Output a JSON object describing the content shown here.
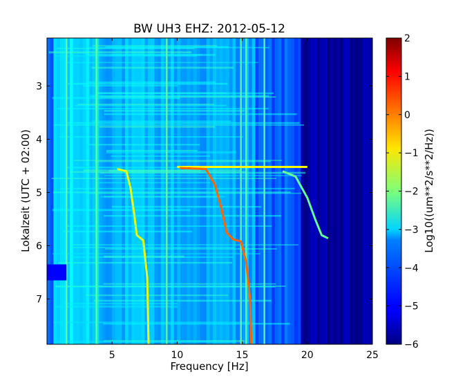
{
  "chart_data": {
    "type": "heatmap",
    "title": "BW UH3 EHZ: 2012-05-12",
    "xlabel": "Frequency [Hz]",
    "ylabel": "Lokalzeit (UTC + 02:00)",
    "xlim": [
      0,
      25
    ],
    "ylim": [
      7.85,
      2.1
    ],
    "x_ticks": [
      5,
      10,
      15,
      20,
      25
    ],
    "x_tick_labels": [
      "5",
      "10",
      "15",
      "20",
      "25"
    ],
    "y_ticks": [
      3,
      4,
      5,
      6,
      7
    ],
    "y_tick_labels": [
      "3",
      "4",
      "5",
      "6",
      "7"
    ],
    "colorbar": {
      "label": "Log10((um**2/s**2/Hz))",
      "range": [
        -6,
        2
      ],
      "ticks": [
        2,
        1,
        0,
        -1,
        -2,
        -3,
        -4,
        -5,
        -6
      ],
      "tick_labels": [
        "2",
        "1",
        "0",
        "−1",
        "−2",
        "−3",
        "−4",
        "−5",
        "−6"
      ],
      "colormap": "jet"
    },
    "features": {
      "background_levels": [
        {
          "from_hz": 0,
          "to_hz": 0.5,
          "level": -4.4
        },
        {
          "from_hz": 0.5,
          "to_hz": 4,
          "level": -3.3
        },
        {
          "from_hz": 4,
          "to_hz": 10,
          "level": -3.6
        },
        {
          "from_hz": 10,
          "to_hz": 16,
          "level": -3.7
        },
        {
          "from_hz": 16,
          "to_hz": 19.5,
          "level": -4.3
        },
        {
          "from_hz": 19.5,
          "to_hz": 25,
          "level": -5.8
        }
      ],
      "vertical_lines_hz": [
        1.5,
        3.8,
        9.2,
        14.9,
        15.3,
        16.7
      ],
      "sweeps": [
        {
          "name": "sweep-low",
          "level": -1.2,
          "points": [
            [
              5.4,
              4.56
            ],
            [
              6.1,
              4.6
            ],
            [
              6.4,
              4.9
            ],
            [
              6.7,
              5.4
            ],
            [
              6.9,
              5.8
            ],
            [
              7.4,
              5.9
            ],
            [
              7.7,
              6.6
            ],
            [
              7.8,
              7.85
            ]
          ]
        },
        {
          "name": "sweep-mid",
          "level": 0.2,
          "points": [
            [
              10.2,
              4.54
            ],
            [
              12.2,
              4.56
            ],
            [
              12.9,
              4.85
            ],
            [
              13.4,
              5.3
            ],
            [
              13.8,
              5.75
            ],
            [
              14.3,
              5.88
            ],
            [
              14.9,
              5.92
            ],
            [
              15.3,
              6.3
            ],
            [
              15.6,
              7.0
            ],
            [
              15.7,
              7.85
            ]
          ]
        },
        {
          "name": "sweep-high",
          "level": -2.2,
          "points": [
            [
              18.1,
              4.6
            ],
            [
              19.1,
              4.7
            ],
            [
              20.0,
              5.1
            ],
            [
              20.6,
              5.5
            ],
            [
              21.1,
              5.8
            ],
            [
              21.6,
              5.86
            ]
          ]
        }
      ],
      "horizontal_band": {
        "from_hz": 10,
        "to_hz": 20,
        "time": 4.52,
        "level": -1.0
      },
      "quiet_patch": {
        "from_hz": 0,
        "to_hz": 1.5,
        "time_from": 6.35,
        "time_to": 6.65,
        "level": -5.0
      }
    }
  }
}
